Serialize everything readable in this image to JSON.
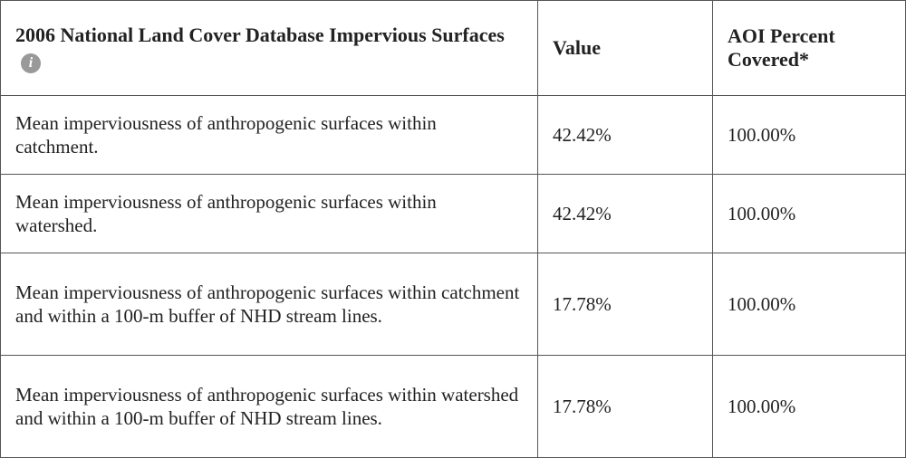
{
  "table": {
    "header": [
      "2006 National Land Cover Database Impervious Surfaces",
      "Value",
      "AOI Percent Covered*"
    ],
    "rows": [
      [
        "Mean imperviousness of anthropogenic surfaces within catchment.",
        "42.42%",
        "100.00%"
      ],
      [
        "Mean imperviousness of anthropogenic surfaces within watershed.",
        "42.42%",
        "100.00%"
      ],
      [
        "Mean imperviousness of anthropogenic surfaces within catchment and within a 100-m buffer of NHD stream lines.",
        "17.78%",
        "100.00%"
      ],
      [
        "Mean imperviousness of anthropogenic surfaces within watershed and within a 100-m buffer of NHD stream lines.",
        "17.78%",
        "100.00%"
      ]
    ]
  }
}
